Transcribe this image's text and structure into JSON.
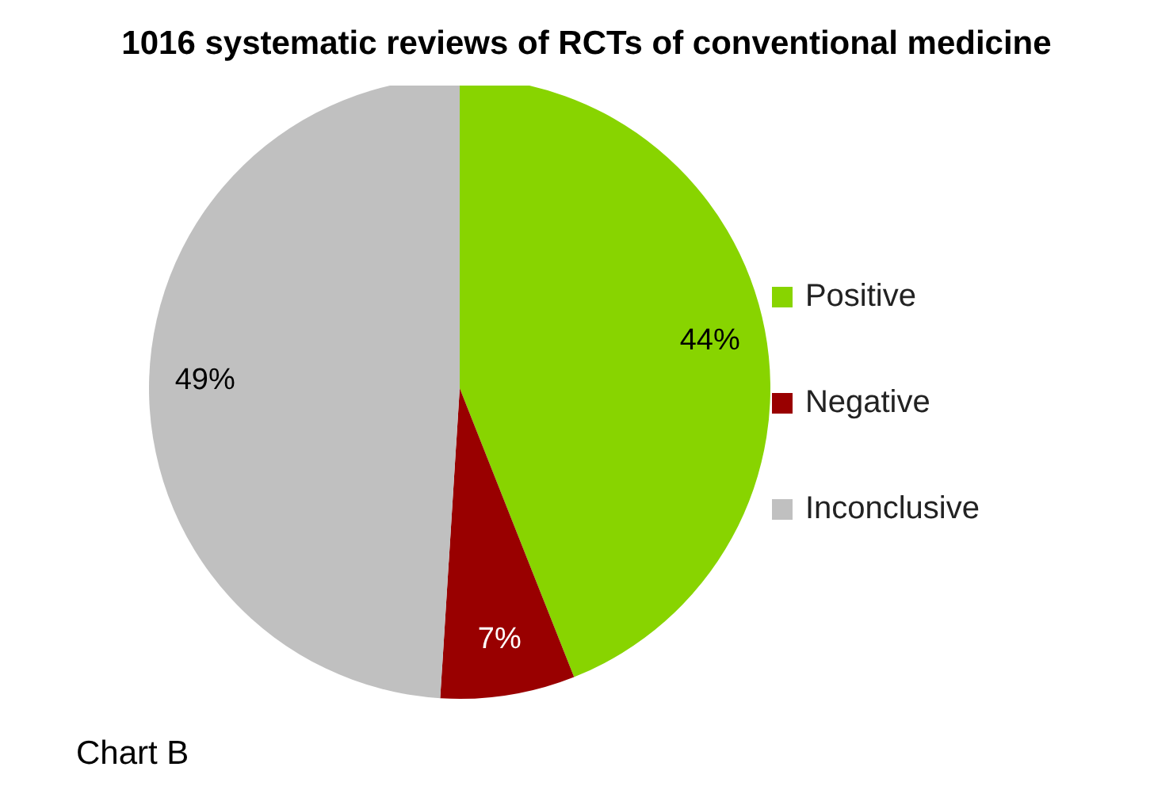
{
  "chart_data": {
    "type": "pie",
    "title": "1016 systematic reviews of RCTs of conventional medicine",
    "categories": [
      "Positive",
      "Negative",
      "Inconclusive"
    ],
    "values": [
      44,
      7,
      49
    ],
    "value_labels": [
      "44%",
      "7%",
      "49%"
    ],
    "colors": [
      "#88d400",
      "#990000",
      "#c0c0c0"
    ],
    "legend": "right",
    "annotations": [
      "Chart B"
    ]
  }
}
